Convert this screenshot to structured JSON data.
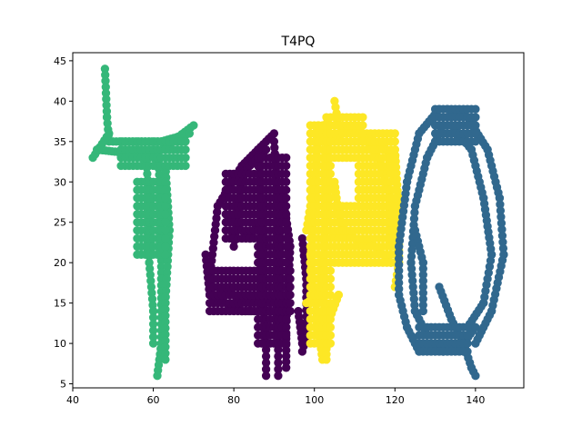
{
  "chart_data": {
    "type": "scatter",
    "title": "T4PQ",
    "xlabel": "",
    "ylabel": "",
    "xlim": [
      40,
      152
    ],
    "ylim": [
      4.5,
      46
    ],
    "xticks": [
      40,
      60,
      80,
      100,
      120,
      140
    ],
    "yticks": [
      5,
      10,
      15,
      20,
      25,
      30,
      35,
      40,
      45
    ],
    "grid": false,
    "legend": "none",
    "marker_radius_data": 1.05,
    "series": [
      {
        "letter": "T",
        "color": "#35b779",
        "strokes": [
          [
            [
              48,
              44
            ],
            [
              48.5,
              38
            ],
            [
              49,
              35
            ]
          ],
          [
            [
              45,
              33
            ],
            [
              49,
              36
            ]
          ],
          [
            [
              46,
              34
            ],
            [
              55,
              33.5
            ],
            [
              62,
              34
            ],
            [
              70,
              37
            ]
          ],
          [
            [
              50,
              35
            ],
            [
              62,
              35
            ],
            [
              69,
              36
            ]
          ],
          [
            [
              58,
              34
            ],
            [
              59,
              28
            ],
            [
              59,
              20
            ],
            [
              60,
              14
            ],
            [
              60,
              10
            ]
          ],
          [
            [
              61,
              34
            ],
            [
              62,
              27
            ],
            [
              62,
              18
            ],
            [
              62,
              10
            ],
            [
              61,
              6
            ]
          ],
          [
            [
              63,
              32
            ],
            [
              64,
              24
            ],
            [
              63,
              15
            ],
            [
              63,
              8
            ]
          ]
        ],
        "fills": [
          {
            "x0": 56,
            "x1": 63.5,
            "y0": 21,
            "y1": 30
          },
          {
            "x0": 52,
            "x1": 68,
            "y0": 32,
            "y1": 35
          }
        ]
      },
      {
        "letter": "4",
        "color": "#440154",
        "strokes": [
          [
            [
              74,
              18
            ],
            [
              76,
              27
            ],
            [
              82,
              32
            ],
            [
              90,
              36
            ]
          ],
          [
            [
              80,
              22
            ],
            [
              82,
              31
            ],
            [
              88,
              34
            ]
          ],
          [
            [
              73,
              21
            ],
            [
              74,
              16
            ],
            [
              82,
              14
            ],
            [
              94,
              14
            ]
          ],
          [
            [
              76,
              17
            ],
            [
              84,
              15
            ],
            [
              93,
              16
            ]
          ],
          [
            [
              86,
              34
            ],
            [
              87,
              26
            ],
            [
              87,
              17
            ],
            [
              88,
              10
            ],
            [
              88,
              6
            ]
          ],
          [
            [
              90,
              35
            ],
            [
              91,
              26
            ],
            [
              91,
              17
            ],
            [
              91,
              10
            ],
            [
              91,
              6
            ]
          ],
          [
            [
              92,
              29
            ],
            [
              94,
              22
            ],
            [
              93,
              12
            ],
            [
              93,
              7
            ]
          ],
          [
            [
              97,
              23
            ],
            [
              98,
              18
            ],
            [
              98,
              11
            ],
            [
              97,
              9
            ]
          ],
          [
            [
              78,
              26
            ],
            [
              84,
              23
            ],
            [
              86,
              25
            ],
            [
              88,
              22
            ]
          ],
          [
            [
              96,
              14
            ],
            [
              97,
              10
            ]
          ]
        ],
        "fills": [
          {
            "x0": 78,
            "x1": 85,
            "y0": 23,
            "y1": 31
          },
          {
            "x0": 86,
            "x1": 93,
            "y0": 10,
            "y1": 33
          },
          {
            "x0": 74,
            "x1": 94,
            "y0": 14,
            "y1": 19
          }
        ]
      },
      {
        "letter": "P",
        "color": "#fde725",
        "strokes": [
          [
            [
              101,
              37
            ],
            [
              100,
              28
            ],
            [
              99,
              20
            ],
            [
              101,
              12
            ],
            [
              102,
              8
            ]
          ],
          [
            [
              103,
              38
            ],
            [
              103,
              28
            ],
            [
              102,
              18
            ],
            [
              103,
              10
            ],
            [
              103,
              8
            ]
          ],
          [
            [
              105,
              40
            ],
            [
              106,
              37
            ],
            [
              112,
              36
            ],
            [
              118,
              34
            ],
            [
              120,
              30
            ]
          ],
          [
            [
              104,
              35
            ],
            [
              110,
              37
            ],
            [
              116,
              33
            ],
            [
              119,
              28
            ],
            [
              119,
              22
            ]
          ],
          [
            [
              104,
              24
            ],
            [
              110,
              23
            ],
            [
              115,
              22
            ],
            [
              119,
              20
            ]
          ],
          [
            [
              98,
              15
            ],
            [
              101,
              16
            ],
            [
              104,
              14
            ],
            [
              106,
              16
            ],
            [
              103,
              12
            ]
          ],
          [
            [
              105,
              30
            ],
            [
              106,
              26
            ],
            [
              108,
              23
            ]
          ],
          [
            [
              120,
              34
            ],
            [
              121,
              26
            ],
            [
              121,
              20
            ],
            [
              120,
              17
            ]
          ],
          [
            [
              98,
              24
            ],
            [
              100,
              30
            ]
          ]
        ],
        "fills": [
          {
            "x0": 99,
            "x1": 104,
            "y0": 10,
            "y1": 37
          },
          {
            "x0": 104,
            "x1": 120,
            "y0": 20,
            "y1": 27
          },
          {
            "x0": 111,
            "x1": 120,
            "y0": 26,
            "y1": 36
          },
          {
            "x0": 104,
            "x1": 112,
            "y0": 33,
            "y1": 38
          }
        ]
      },
      {
        "letter": "Q",
        "color": "#31688e",
        "strokes": [
          [
            [
              131,
              39
            ],
            [
              126,
              36
            ],
            [
              123,
              30
            ],
            [
              121,
              22
            ],
            [
              121,
              16
            ],
            [
              123,
              12
            ],
            [
              126,
              9
            ]
          ],
          [
            [
              132,
              37
            ],
            [
              128,
              33
            ],
            [
              125,
              27
            ],
            [
              124,
              20
            ],
            [
              125,
              14
            ],
            [
              128,
              11
            ]
          ],
          [
            [
              133,
              39
            ],
            [
              138,
              38
            ],
            [
              143,
              34
            ],
            [
              146,
              28
            ],
            [
              147,
              21
            ],
            [
              144,
              14
            ],
            [
              140,
              10
            ]
          ],
          [
            [
              134,
              37
            ],
            [
              139,
              34
            ],
            [
              142,
              28
            ],
            [
              144,
              21
            ],
            [
              142,
              15
            ],
            [
              138,
              12
            ]
          ],
          [
            [
              126,
              10
            ],
            [
              132,
              9
            ],
            [
              137,
              10
            ],
            [
              140,
              12
            ]
          ],
          [
            [
              131,
              17
            ],
            [
              134,
              13
            ],
            [
              137,
              10
            ],
            [
              139,
              7
            ],
            [
              140,
              6
            ]
          ],
          [
            [
              125,
              24
            ],
            [
              127,
              20
            ],
            [
              127,
              14
            ]
          ]
        ],
        "fills": [
          {
            "x0": 126,
            "x1": 138,
            "y0": 9,
            "y1": 12
          },
          {
            "x0": 130,
            "x1": 140,
            "y0": 35,
            "y1": 39
          }
        ]
      }
    ]
  }
}
